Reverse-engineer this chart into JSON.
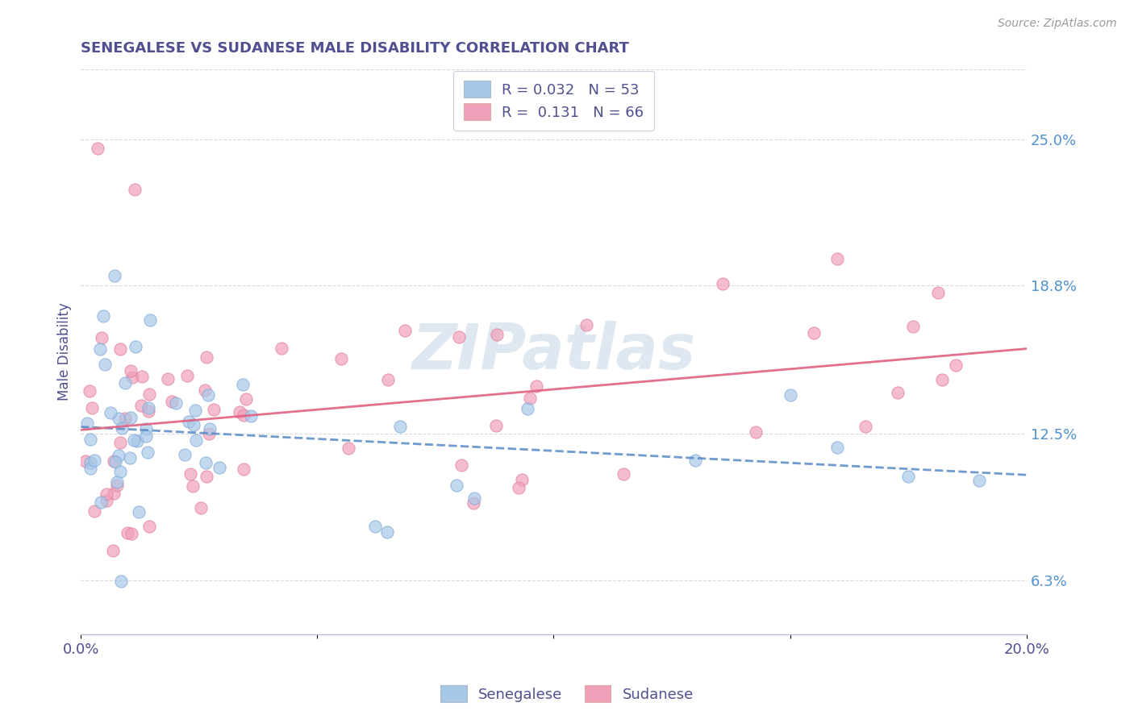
{
  "title": "SENEGALESE VS SUDANESE MALE DISABILITY CORRELATION CHART",
  "source": "Source: ZipAtlas.com",
  "ylabel": "Male Disability",
  "xlim": [
    0.0,
    0.2
  ],
  "ylim": [
    0.04,
    0.28
  ],
  "ytick_labels_right": [
    "6.3%",
    "12.5%",
    "18.8%",
    "25.0%"
  ],
  "ytick_vals_right": [
    0.063,
    0.125,
    0.188,
    0.25
  ],
  "watermark": "ZIPatlas",
  "senegalese_R": 0.032,
  "senegalese_N": 53,
  "sudanese_R": 0.131,
  "sudanese_N": 66,
  "color_senegalese": "#a8c8e8",
  "color_sudanese": "#f0a0b8",
  "color_title": "#505090",
  "color_axis_labels": "#505090",
  "color_legend_text": "#505090",
  "color_right_labels": "#5090d0",
  "color_grid": "#d8d8e0",
  "color_trendline_blue": "#6090c8",
  "color_trendline_pink": "#e06080"
}
